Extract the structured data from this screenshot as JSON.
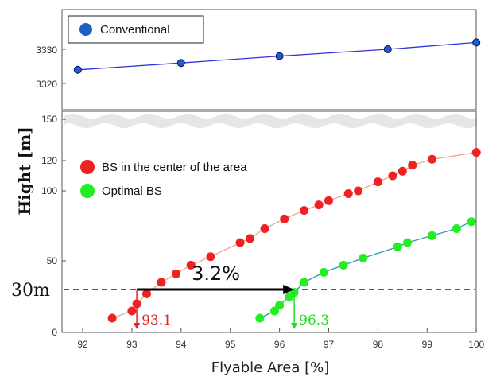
{
  "chart_data": {
    "type": "scatter",
    "title": "",
    "xlabel": "Flyable Area [%]",
    "ylabel": "Hight [m]",
    "xlim": [
      91.6,
      100
    ],
    "xticks": [
      92,
      93,
      94,
      95,
      96,
      97,
      98,
      99,
      100
    ],
    "yticks_lower": [
      0,
      50,
      100,
      120,
      150
    ],
    "yticks_upper": [
      3320,
      3330
    ],
    "ylim_lower": [
      0,
      150
    ],
    "ylim_upper": [
      3318,
      3333
    ],
    "grid": false,
    "axis_break": "between 150 and 3320",
    "legend_upper": "top-left",
    "legend_lower": "middle-left",
    "series": [
      {
        "name": "Conventional",
        "color": "#1f5fbf",
        "line_color": "#3333dd",
        "panel": "upper",
        "x": [
          91.9,
          94.0,
          96.0,
          98.2,
          100.0
        ],
        "y": [
          3324,
          3326,
          3328,
          3330,
          3332
        ]
      },
      {
        "name": "BS in the center of the area",
        "color": "#ee2222",
        "line_color": "#f5a58a",
        "panel": "lower",
        "x": [
          92.6,
          93.0,
          93.1,
          93.3,
          93.6,
          93.9,
          94.2,
          94.6,
          95.2,
          95.4,
          95.7,
          96.1,
          96.5,
          96.8,
          97.0,
          97.4,
          97.6,
          98.0,
          98.3,
          98.5,
          98.7,
          99.1,
          100.0
        ],
        "y": [
          10,
          15,
          20,
          27,
          35,
          41,
          47,
          53,
          63,
          66,
          73,
          80,
          86,
          90,
          93,
          98,
          100,
          106,
          110,
          113,
          117,
          121,
          126
        ]
      },
      {
        "name": "Optimal BS",
        "color": "#22ee22",
        "line_color": "#2a9bb0",
        "panel": "lower",
        "x": [
          95.6,
          95.9,
          96.0,
          96.2,
          96.3,
          96.5,
          96.9,
          97.3,
          97.7,
          98.4,
          98.6,
          99.1,
          99.6,
          99.9
        ],
        "y": [
          10,
          15,
          19,
          25,
          28,
          35,
          42,
          47,
          52,
          60,
          63,
          68,
          73,
          78
        ]
      }
    ],
    "annotations": {
      "threshold_label": "30m",
      "threshold_value": 30,
      "gap_label": "3.2%",
      "marker_red_value": "93.1",
      "marker_green_value": "96.3",
      "marker_red_x": 93.1,
      "marker_green_x": 96.3
    }
  }
}
